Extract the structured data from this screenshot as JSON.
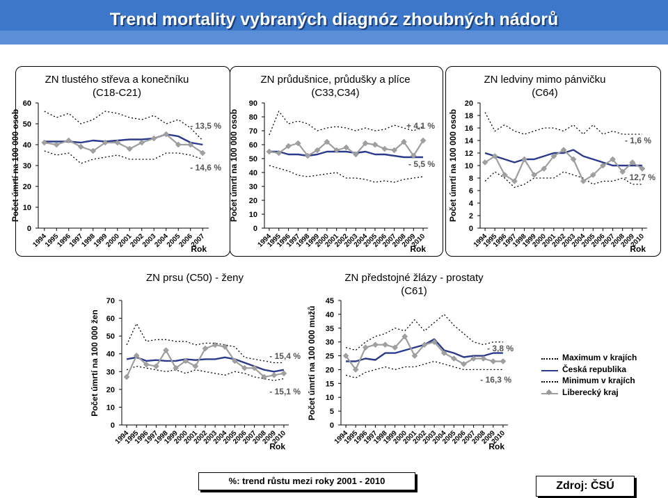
{
  "title": "Trend mortality vybraných diagnóz zhoubných nádorů",
  "footnote": "%: trend růstu mezi roky 2001 - 2010",
  "source": "Zdroj: ČSÚ",
  "colors": {
    "cr": "#2b3a8a",
    "lk": "#9e9e9e",
    "max": "#000000",
    "min": "#000000",
    "title_bg": "#3c77c9"
  },
  "legend": {
    "items": [
      {
        "label": "Maximum v krajích",
        "style": "dotted"
      },
      {
        "label": "Česká republika",
        "style": "solid-navy"
      },
      {
        "label": "Minimum v krajích",
        "style": "dotted"
      },
      {
        "label": "Liberecký kraj",
        "style": "gray-diamond"
      }
    ]
  },
  "chart_data": [
    {
      "type": "line",
      "title": "ZN tlustého střeva a konečníku (C18-C21)",
      "ylabel": "Počet úmrtí na 100 000 osob",
      "xlabel": "Rok",
      "ylim": [
        0,
        60
      ],
      "yticks": [
        0,
        10,
        20,
        30,
        40,
        50,
        60
      ],
      "x": [
        "1994",
        "1995",
        "1996",
        "1997",
        "1998",
        "1999",
        "2000",
        "2001",
        "2002",
        "2003",
        "2004",
        "2005",
        "2006",
        "2007"
      ],
      "series": [
        {
          "role": "max",
          "values": [
            56,
            53,
            55,
            50,
            52,
            56,
            55,
            53,
            52,
            54,
            50,
            52,
            48,
            42
          ]
        },
        {
          "role": "cr",
          "values": [
            41.5,
            41.5,
            41.5,
            41,
            42,
            41.5,
            42,
            42.5,
            42.5,
            43,
            45,
            44,
            41,
            40
          ]
        },
        {
          "role": "min",
          "values": [
            37,
            35,
            36,
            31,
            33,
            34,
            35,
            33,
            33,
            33,
            36,
            36,
            35,
            33
          ]
        },
        {
          "role": "lk",
          "values": [
            41,
            40,
            42,
            39,
            37,
            41,
            41,
            38,
            41,
            43,
            45,
            40,
            40,
            36
          ]
        }
      ],
      "annotations": [
        "- 13,5 %",
        "- 14,6 %"
      ]
    },
    {
      "type": "line",
      "title": "ZN průdušnice, průdušky a plíce (C33,C34)",
      "ylabel": "Počet úmrtí na 100 000 osob",
      "xlabel": "Rok",
      "ylim": [
        0,
        90
      ],
      "yticks": [
        0,
        10,
        20,
        30,
        40,
        50,
        60,
        70,
        80,
        90
      ],
      "x": [
        "1994",
        "1995",
        "1996",
        "1997",
        "1998",
        "1999",
        "2000",
        "2001",
        "2002",
        "2003",
        "2004",
        "2005",
        "2006",
        "2007",
        "2008",
        "2009",
        "2010"
      ],
      "series": [
        {
          "role": "max",
          "values": [
            67,
            84,
            75,
            77,
            75,
            70,
            72,
            73,
            72,
            70,
            72,
            70,
            71,
            74,
            72,
            70,
            73
          ]
        },
        {
          "role": "cr",
          "values": [
            55,
            55,
            53,
            53,
            52,
            53,
            55,
            55,
            55,
            54,
            55,
            53,
            53,
            52,
            51,
            51,
            51
          ]
        },
        {
          "role": "min",
          "values": [
            45,
            43,
            41,
            38,
            37,
            38,
            39,
            40,
            36,
            36,
            35,
            33,
            34,
            33,
            35,
            36,
            37
          ]
        },
        {
          "role": "lk",
          "values": [
            55,
            54,
            59,
            61,
            52,
            56,
            62,
            56,
            58,
            53,
            61,
            60,
            57,
            56,
            62,
            52,
            63
          ]
        }
      ],
      "annotations": [
        "+ 4,1 %",
        "- 5,5 %"
      ]
    },
    {
      "type": "line",
      "title": "ZN ledviny mimo pánvičku (C64)",
      "ylabel": "Počet úmrtí na 100 000 osob",
      "xlabel": "Rok",
      "ylim": [
        0,
        20
      ],
      "yticks": [
        0,
        2,
        4,
        6,
        8,
        10,
        12,
        14,
        16,
        18,
        20
      ],
      "x": [
        "1994",
        "1995",
        "1996",
        "1997",
        "1998",
        "1999",
        "2000",
        "2001",
        "2002",
        "2003",
        "2004",
        "2005",
        "2006",
        "2007",
        "2008",
        "2009",
        "2010"
      ],
      "series": [
        {
          "role": "max",
          "values": [
            18.5,
            15.5,
            16.5,
            15.5,
            15,
            15.5,
            16,
            16,
            15.5,
            16.5,
            15,
            16.5,
            15,
            15.5,
            15,
            15,
            15
          ]
        },
        {
          "role": "cr",
          "values": [
            12,
            11.5,
            11,
            10.5,
            11,
            11,
            11.5,
            12,
            12,
            12.5,
            11.5,
            11,
            10.5,
            10,
            10,
            10,
            10
          ]
        },
        {
          "role": "min",
          "values": [
            7.5,
            9,
            8,
            6.5,
            7,
            8,
            8,
            8,
            9,
            8.5,
            8,
            7,
            7.5,
            7.5,
            8,
            7,
            7
          ]
        },
        {
          "role": "lk",
          "values": [
            10.5,
            11.5,
            8.5,
            7.5,
            11,
            8.5,
            9.5,
            11.5,
            12.5,
            11,
            7.5,
            8.5,
            10,
            11,
            9,
            10.5,
            9.5
          ]
        }
      ],
      "annotations": [
        "- 1,6 %",
        "- 12,7 %"
      ]
    },
    {
      "type": "line",
      "title": "ZN prsu (C50) - ženy",
      "ylabel": "Počet úmrtí na 100 000 žen",
      "xlabel": "Rok",
      "ylim": [
        0,
        70
      ],
      "yticks": [
        0,
        10,
        20,
        30,
        40,
        50,
        60,
        70
      ],
      "x": [
        "1994",
        "1995",
        "1996",
        "1997",
        "1998",
        "1999",
        "2000",
        "2001",
        "2002",
        "2003",
        "2004",
        "2005",
        "2006",
        "2007",
        "2008",
        "2009",
        "2010"
      ],
      "series": [
        {
          "role": "max",
          "values": [
            45,
            57,
            47,
            48,
            48,
            47,
            47,
            45,
            46,
            46,
            45,
            44,
            38,
            37,
            36,
            35,
            35
          ]
        },
        {
          "role": "cr",
          "values": [
            37,
            38,
            36,
            36.5,
            36,
            36,
            37,
            36.5,
            37,
            37,
            38,
            37,
            35,
            33,
            31,
            30,
            31
          ]
        },
        {
          "role": "min",
          "values": [
            31,
            33,
            32,
            31,
            30,
            31,
            29,
            31,
            30,
            29,
            28,
            30,
            29,
            27,
            26,
            25,
            26
          ]
        },
        {
          "role": "lk",
          "values": [
            27,
            39,
            34,
            33,
            42,
            32,
            36,
            33,
            43,
            45,
            44,
            36,
            32,
            32,
            27,
            28,
            29
          ]
        }
      ],
      "annotations": [
        "- 15,4 %",
        "- 15,1 %"
      ]
    },
    {
      "type": "line",
      "title": "ZN předstojné žlázy - prostaty (C61)",
      "ylabel": "Počet úmrtí na 100 000 mužů",
      "xlabel": "Rok",
      "ylim": [
        0,
        45
      ],
      "yticks": [
        0,
        5,
        10,
        15,
        20,
        25,
        30,
        35,
        40,
        45
      ],
      "x": [
        "1994",
        "1995",
        "1996",
        "1997",
        "1998",
        "1999",
        "2000",
        "2001",
        "2002",
        "2003",
        "2004",
        "2005",
        "2006",
        "2007",
        "2008",
        "2009",
        "2010"
      ],
      "series": [
        {
          "role": "max",
          "values": [
            28,
            27,
            30,
            32,
            33,
            35,
            34,
            38,
            34,
            37,
            40,
            36,
            33,
            30,
            29,
            30,
            30
          ]
        },
        {
          "role": "cr",
          "values": [
            23,
            23,
            24,
            23.5,
            26,
            26,
            27,
            28,
            29,
            31,
            27,
            26,
            24.5,
            25,
            25,
            26,
            26
          ]
        },
        {
          "role": "min",
          "values": [
            18,
            17,
            19,
            20,
            21,
            20,
            21,
            21,
            22,
            23,
            22,
            21,
            20,
            20,
            20,
            20,
            20
          ]
        },
        {
          "role": "lk",
          "values": [
            25,
            20,
            28,
            29,
            29,
            28,
            32,
            25,
            29,
            30,
            26,
            24,
            22,
            24,
            24,
            23,
            23
          ]
        }
      ],
      "annotations": [
        "- 3,8 %",
        "- 16,3 %"
      ]
    }
  ]
}
